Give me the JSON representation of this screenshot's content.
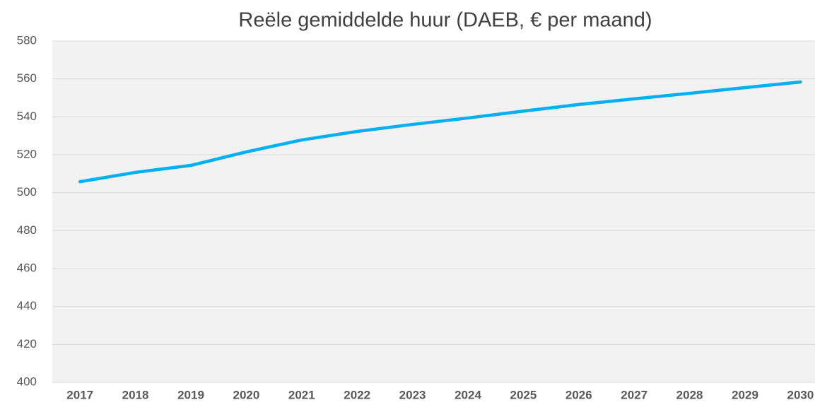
{
  "chart_data": {
    "type": "line",
    "title": "Reële gemiddelde huur (DAEB, € per maand)",
    "categories": [
      "2017",
      "2018",
      "2019",
      "2020",
      "2021",
      "2022",
      "2023",
      "2024",
      "2025",
      "2026",
      "2027",
      "2028",
      "2029",
      "2030"
    ],
    "series": [
      {
        "name": "Reële gemiddelde huur",
        "color": "#00b0f0",
        "values": [
          505.8,
          510.7,
          514.4,
          521.5,
          527.8,
          532.3,
          536,
          539.4,
          543,
          546.5,
          549.5,
          552.4,
          555.4,
          558.4
        ]
      }
    ],
    "ylim": [
      400,
      580
    ],
    "yticks": [
      400,
      420,
      440,
      460,
      480,
      500,
      520,
      540,
      560,
      580
    ],
    "grid": true
  }
}
